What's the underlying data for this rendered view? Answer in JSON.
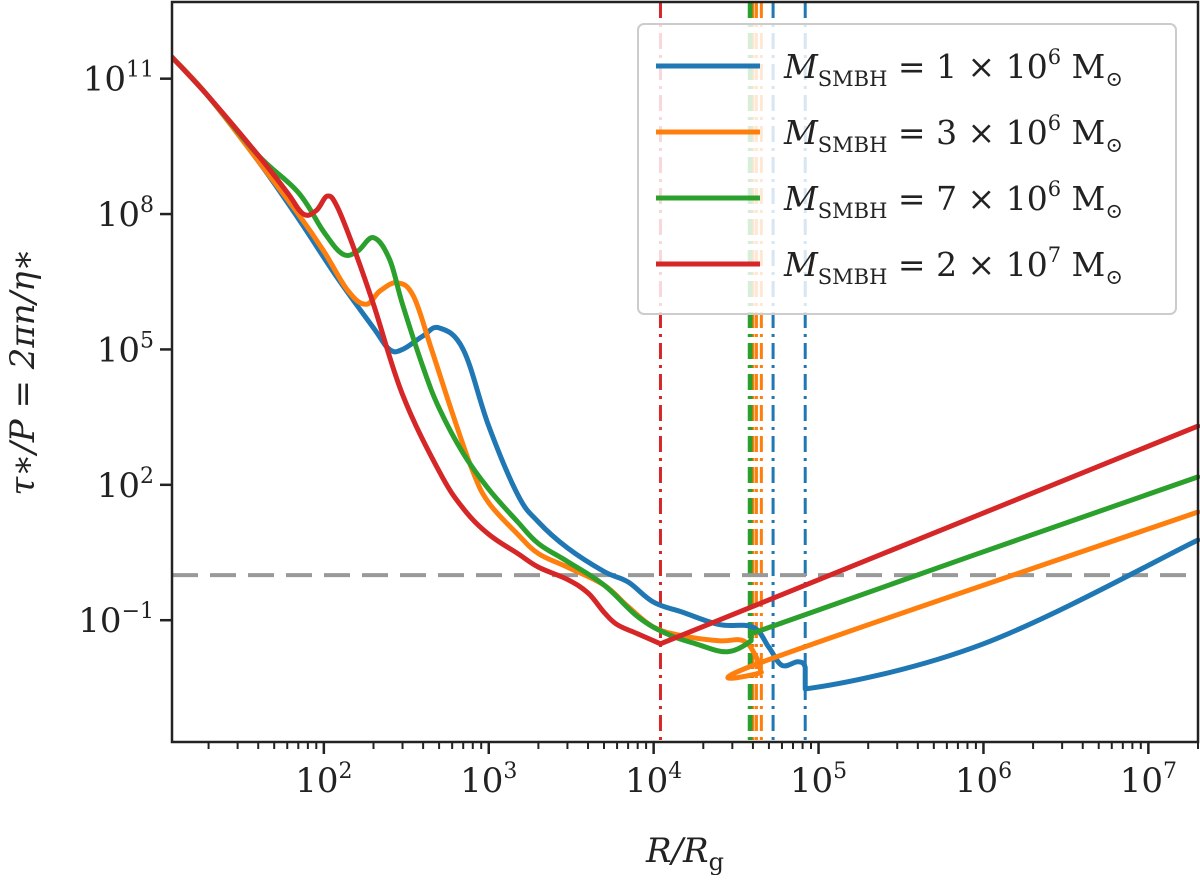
{
  "chart_data": {
    "type": "line",
    "x_scale": "log",
    "y_scale": "log",
    "xlim": [
      12,
      20000000
    ],
    "ylim": [
      0.0002,
      5000000000000.0
    ],
    "xlabel": {
      "main": "R",
      "sep": "/",
      "sub_main": "R",
      "sub": "g"
    },
    "ylabel": {
      "text": "τ∗/P = 2πn/η∗"
    },
    "x_ticks": [
      {
        "value": 100,
        "base": "10",
        "exp": "2"
      },
      {
        "value": 1000,
        "base": "10",
        "exp": "3"
      },
      {
        "value": 10000,
        "base": "10",
        "exp": "4"
      },
      {
        "value": 100000,
        "base": "10",
        "exp": "5"
      },
      {
        "value": 1000000,
        "base": "10",
        "exp": "6"
      },
      {
        "value": 10000000,
        "base": "10",
        "exp": "7"
      }
    ],
    "y_ticks": [
      {
        "value": 0.1,
        "base": "10",
        "exp": "−1"
      },
      {
        "value": 100,
        "base": "10",
        "exp": "2"
      },
      {
        "value": 100000,
        "base": "10",
        "exp": "5"
      },
      {
        "value": 100000000,
        "base": "10",
        "exp": "8"
      },
      {
        "value": 100000000000,
        "base": "10",
        "exp": "11"
      }
    ],
    "hline": {
      "y": 1,
      "color": "#999999",
      "style": "dashed"
    },
    "legend_position": "top-right",
    "grid": false,
    "series": [
      {
        "name": "M_SMBH = 1×10^6 M⊙",
        "legend": {
          "sym": "M",
          "sub": "SMBH",
          "coef": "1",
          "exp": "6",
          "unit": "M",
          "unit_sub": "⊙"
        },
        "color": "#1f77b4",
        "vlines": [
          53000,
          83000
        ],
        "x": [
          12,
          20,
          40,
          70,
          120,
          200,
          250,
          300,
          400,
          500,
          700,
          1000,
          1500,
          2000,
          3000,
          5000,
          7000,
          10000,
          15000,
          25000,
          40000,
          50000,
          60000,
          75000,
          83000,
          83000,
          1000000,
          20000000
        ],
        "y": [
          300000000000.0,
          40000000000.0,
          1500000000.0,
          80000000.0,
          4000000.0,
          300000.0,
          100000.0,
          100000.0,
          200000.0,
          300000.0,
          100000.0,
          2000,
          60,
          15,
          4,
          1.2,
          0.7,
          0.25,
          0.15,
          0.08,
          0.07,
          0.025,
          0.01,
          0.012,
          0.009,
          0.003,
          0.03,
          6
        ]
      },
      {
        "name": "M_SMBH = 3×10^6 M⊙",
        "legend": {
          "sym": "M",
          "sub": "SMBH",
          "coef": "3",
          "exp": "6",
          "unit": "M",
          "unit_sub": "⊙"
        },
        "color": "#ff7f0e",
        "vlines": [
          40000,
          42000,
          45000
        ],
        "x": [
          12,
          20,
          40,
          70,
          100,
          140,
          180,
          220,
          280,
          350,
          450,
          600,
          800,
          1000,
          1500,
          2000,
          3000,
          5000,
          7000,
          10000,
          15000,
          25000,
          35000,
          42000,
          45000,
          46000,
          20000000
        ],
        "y": [
          300000000000.0,
          40000000000.0,
          1500000000.0,
          100000000.0,
          15000000.0,
          2000000.0,
          1000000.0,
          2000000.0,
          3000000.0,
          1500000.0,
          100000.0,
          4000,
          200,
          40,
          8,
          3,
          1.5,
          0.6,
          0.2,
          0.07,
          0.045,
          0.035,
          0.035,
          0.015,
          0.007,
          0.012,
          25
        ]
      },
      {
        "name": "M_SMBH = 7×10^6 M⊙",
        "legend": {
          "sym": "M",
          "sub": "SMBH",
          "coef": "7",
          "exp": "6",
          "unit": "M",
          "unit_sub": "⊙"
        },
        "color": "#2ca02c",
        "vlines": [
          38000,
          39000
        ],
        "x": [
          12,
          20,
          40,
          70,
          100,
          130,
          160,
          200,
          250,
          300,
          400,
          500,
          700,
          1000,
          1500,
          2000,
          3000,
          5000,
          8000,
          12000,
          18000,
          28000,
          39000,
          39000,
          20000000
        ],
        "y": [
          300000000000.0,
          40000000000.0,
          2000000000.0,
          300000000.0,
          40000000.0,
          13000000.0,
          15000000.0,
          30000000.0,
          10000000.0,
          1000000.0,
          40000.0,
          5000,
          500,
          80,
          15,
          5,
          2,
          0.6,
          0.12,
          0.05,
          0.03,
          0.02,
          0.035,
          0.05,
          150
        ]
      },
      {
        "name": "M_SMBH = 2×10^7 M⊙",
        "legend": {
          "sym": "M",
          "sub": "SMBH",
          "coef": "2",
          "exp": "7",
          "unit": "M",
          "unit_sub": "⊙"
        },
        "color": "#d62728",
        "vlines": [
          11000
        ],
        "x": [
          12,
          20,
          40,
          60,
          75,
          90,
          105,
          120,
          150,
          200,
          300,
          500,
          700,
          1000,
          1500,
          2000,
          3000,
          4000,
          5000,
          6000,
          8000,
          11000,
          11000,
          20000000
        ],
        "y": [
          300000000000.0,
          40000000000.0,
          2000000000.0,
          300000000.0,
          100000000.0,
          120000000.0,
          250000000.0,
          150000000.0,
          20000000.0,
          1000000.0,
          10000.0,
          200,
          30,
          8,
          3,
          1.5,
          0.8,
          0.4,
          0.15,
          0.08,
          0.05,
          0.03,
          0.03,
          2000
        ]
      }
    ]
  }
}
